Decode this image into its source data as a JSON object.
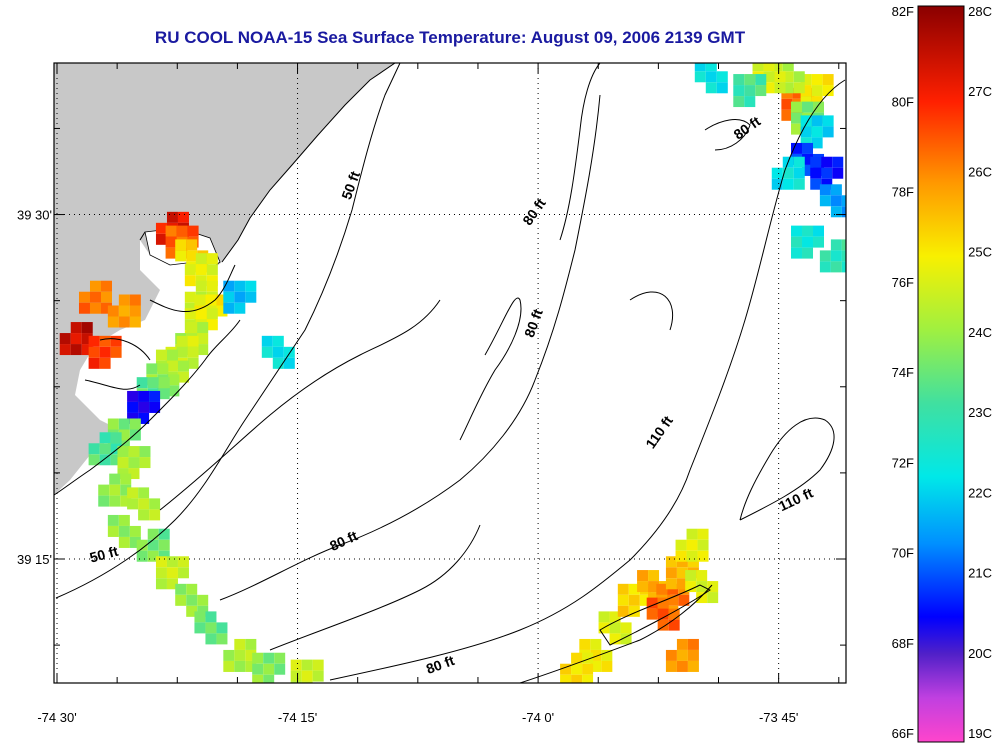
{
  "title": "RU COOL  NOAA-15  Sea Surface Temperature:  August 09, 2006 2139 GMT",
  "colors": {
    "land": "#c8c8c8",
    "title": "#1a1aa0",
    "frame": "#000000"
  },
  "axes": {
    "x_ticks": [
      {
        "label": "-74 30'",
        "value": -74.5
      },
      {
        "label": "-74 15'",
        "value": -74.25
      },
      {
        "label": "-74 0'",
        "value": -74.0
      },
      {
        "label": "-73 45'",
        "value": -73.75
      }
    ],
    "y_ticks": [
      {
        "label": "39 30'",
        "value": 39.5
      },
      {
        "label": "39 15'",
        "value": 39.25
      }
    ],
    "x_range": [
      -74.5,
      -73.68
    ],
    "y_range": [
      39.16,
      39.61
    ],
    "grid": "dotted"
  },
  "depth_labels": [
    {
      "text": "50 ft",
      "lon": -74.19,
      "lat": 39.52,
      "angle": -70
    },
    {
      "text": "80 ft",
      "lon": -74.0,
      "lat": 39.5,
      "angle": -55
    },
    {
      "text": "80 ft",
      "lon": -74.0,
      "lat": 39.42,
      "angle": -70
    },
    {
      "text": "80 ft",
      "lon": -73.78,
      "lat": 39.56,
      "angle": -35
    },
    {
      "text": "110 ft",
      "lon": -73.87,
      "lat": 39.34,
      "angle": -55
    },
    {
      "text": "110 ft",
      "lon": -73.73,
      "lat": 39.29,
      "angle": -25
    },
    {
      "text": "80 ft",
      "lon": -74.2,
      "lat": 39.26,
      "angle": -25
    },
    {
      "text": "50 ft",
      "lon": -74.45,
      "lat": 39.25,
      "angle": -15
    },
    {
      "text": "80 ft",
      "lon": -74.1,
      "lat": 39.17,
      "angle": -20
    }
  ],
  "legend": {
    "fahrenheit_labels": [
      "82F",
      "80F",
      "78F",
      "76F",
      "74F",
      "72F",
      "70F",
      "68F",
      "66F"
    ],
    "celsius_labels": [
      "28C",
      "27C",
      "26C",
      "25C",
      "24C",
      "23C",
      "22C",
      "21C",
      "20C",
      "19C"
    ],
    "range_c": [
      19,
      28
    ]
  },
  "sst_patches": [
    {
      "lon": -74.38,
      "lat": 39.49,
      "c": 27.2
    },
    {
      "lon": -74.37,
      "lat": 39.48,
      "c": 26.5
    },
    {
      "lon": -74.36,
      "lat": 39.47,
      "c": 25.2
    },
    {
      "lon": -74.35,
      "lat": 39.46,
      "c": 24.8
    },
    {
      "lon": -74.35,
      "lat": 39.44,
      "c": 24.5
    },
    {
      "lon": -74.34,
      "lat": 39.43,
      "c": 25.0
    },
    {
      "lon": -74.35,
      "lat": 39.42,
      "c": 24.7
    },
    {
      "lon": -74.36,
      "lat": 39.41,
      "c": 24.2
    },
    {
      "lon": -74.37,
      "lat": 39.4,
      "c": 24.5
    },
    {
      "lon": -74.38,
      "lat": 39.39,
      "c": 24.3
    },
    {
      "lon": -74.39,
      "lat": 39.38,
      "c": 24.0
    },
    {
      "lon": -74.4,
      "lat": 39.37,
      "c": 23.5
    },
    {
      "lon": -74.41,
      "lat": 39.36,
      "c": 20.5
    },
    {
      "lon": -74.43,
      "lat": 39.34,
      "c": 23.8
    },
    {
      "lon": -74.45,
      "lat": 39.33,
      "c": 23.3
    },
    {
      "lon": -74.42,
      "lat": 39.32,
      "c": 24.1
    },
    {
      "lon": -74.44,
      "lat": 39.3,
      "c": 23.9
    },
    {
      "lon": -74.41,
      "lat": 39.29,
      "c": 24.3
    },
    {
      "lon": -74.43,
      "lat": 39.27,
      "c": 24.0
    },
    {
      "lon": -74.4,
      "lat": 39.26,
      "c": 23.6
    },
    {
      "lon": -74.38,
      "lat": 39.24,
      "c": 24.4
    },
    {
      "lon": -74.36,
      "lat": 39.22,
      "c": 24.0
    },
    {
      "lon": -74.34,
      "lat": 39.2,
      "c": 23.4
    },
    {
      "lon": -74.31,
      "lat": 39.18,
      "c": 24.2
    },
    {
      "lon": -74.28,
      "lat": 39.17,
      "c": 23.8
    },
    {
      "lon": -74.24,
      "lat": 39.165,
      "c": 24.4
    },
    {
      "lon": -74.31,
      "lat": 39.44,
      "c": 22.0
    },
    {
      "lon": -74.27,
      "lat": 39.4,
      "c": 22.5
    },
    {
      "lon": -74.46,
      "lat": 39.44,
      "c": 26.3
    },
    {
      "lon": -74.43,
      "lat": 39.43,
      "c": 26.0
    },
    {
      "lon": -74.48,
      "lat": 39.41,
      "c": 27.5
    },
    {
      "lon": -74.45,
      "lat": 39.4,
      "c": 26.8
    },
    {
      "lon": -73.92,
      "lat": 39.2,
      "c": 24.6
    },
    {
      "lon": -73.9,
      "lat": 39.22,
      "c": 25.3
    },
    {
      "lon": -73.88,
      "lat": 39.23,
      "c": 25.8
    },
    {
      "lon": -73.86,
      "lat": 39.22,
      "c": 26.2
    },
    {
      "lon": -73.85,
      "lat": 39.24,
      "c": 25.6
    },
    {
      "lon": -73.84,
      "lat": 39.26,
      "c": 24.8
    },
    {
      "lon": -73.87,
      "lat": 39.21,
      "c": 26.4
    },
    {
      "lon": -73.94,
      "lat": 39.18,
      "c": 24.9
    },
    {
      "lon": -73.96,
      "lat": 39.17,
      "c": 25.1
    },
    {
      "lon": -73.83,
      "lat": 39.23,
      "c": 24.6
    },
    {
      "lon": -73.85,
      "lat": 39.18,
      "c": 26.0
    },
    {
      "lon": -73.73,
      "lat": 39.58,
      "c": 26.5
    },
    {
      "lon": -73.71,
      "lat": 39.59,
      "c": 25.0
    },
    {
      "lon": -73.74,
      "lat": 39.6,
      "c": 24.3
    },
    {
      "lon": -73.76,
      "lat": 39.6,
      "c": 24.6
    },
    {
      "lon": -73.72,
      "lat": 39.57,
      "c": 23.8
    },
    {
      "lon": -73.78,
      "lat": 39.59,
      "c": 23.2
    },
    {
      "lon": -73.71,
      "lat": 39.56,
      "c": 22.3
    },
    {
      "lon": -73.72,
      "lat": 39.54,
      "c": 21.0
    },
    {
      "lon": -73.74,
      "lat": 39.53,
      "c": 22.4
    },
    {
      "lon": -73.7,
      "lat": 39.53,
      "c": 20.8
    },
    {
      "lon": -73.69,
      "lat": 39.51,
      "c": 21.6
    },
    {
      "lon": -73.82,
      "lat": 39.6,
      "c": 22.5
    },
    {
      "lon": -73.69,
      "lat": 39.47,
      "c": 23.0
    },
    {
      "lon": -73.72,
      "lat": 39.48,
      "c": 22.6
    }
  ]
}
